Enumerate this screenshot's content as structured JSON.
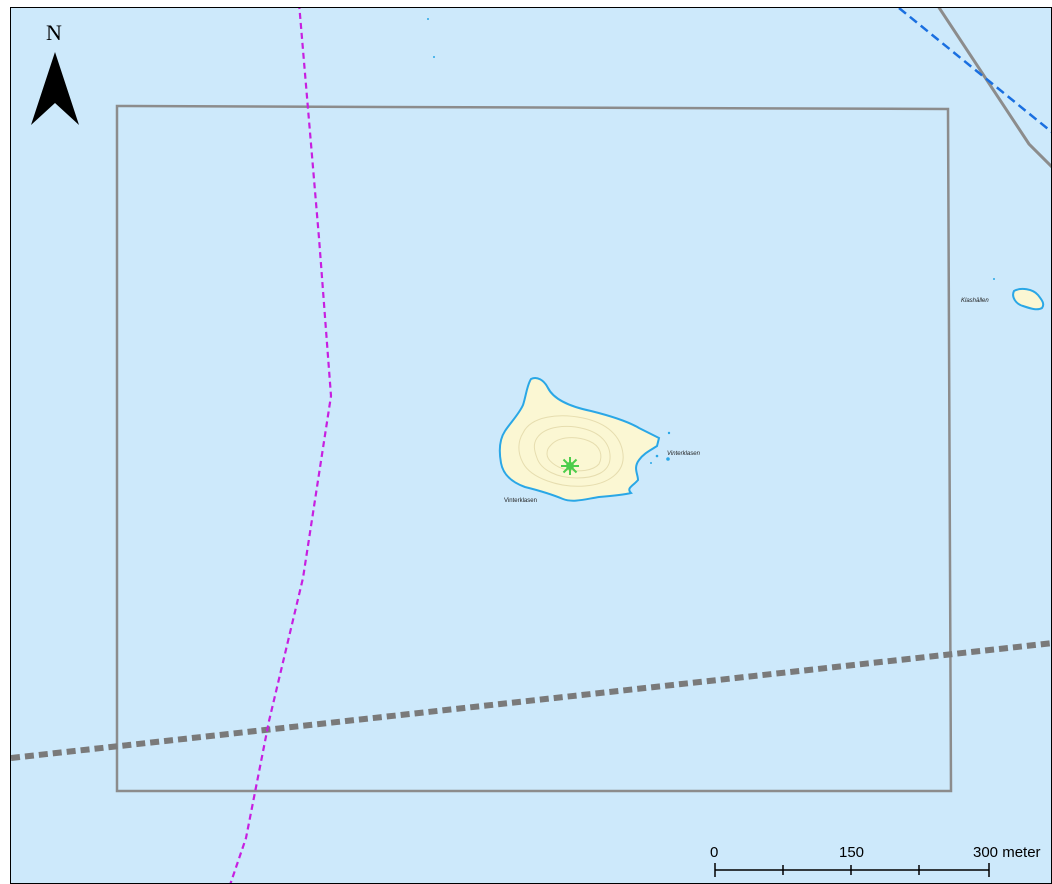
{
  "map": {
    "water_color": "#cde9fb",
    "land_color": "#fbf7d3",
    "shore_color": "#2aa7e6"
  },
  "north_arrow": {
    "label": "N",
    "icon": "north-arrow-icon"
  },
  "places": {
    "main_island": "Vinterklasen",
    "islet_label": "Vinterklasen",
    "east_islet": "Klashällen"
  },
  "marker": {
    "icon": "site-asterisk-icon",
    "color": "#4ccd4c"
  },
  "lines": {
    "boundary_color": "#8c8c8c",
    "magenta_route_color": "#c71fe0",
    "blue_route_color": "#1a6fe0",
    "dotted_border_color": "#7a7a7a"
  },
  "scale_bar": {
    "ticks": [
      "0",
      "150",
      "300 meter"
    ]
  }
}
